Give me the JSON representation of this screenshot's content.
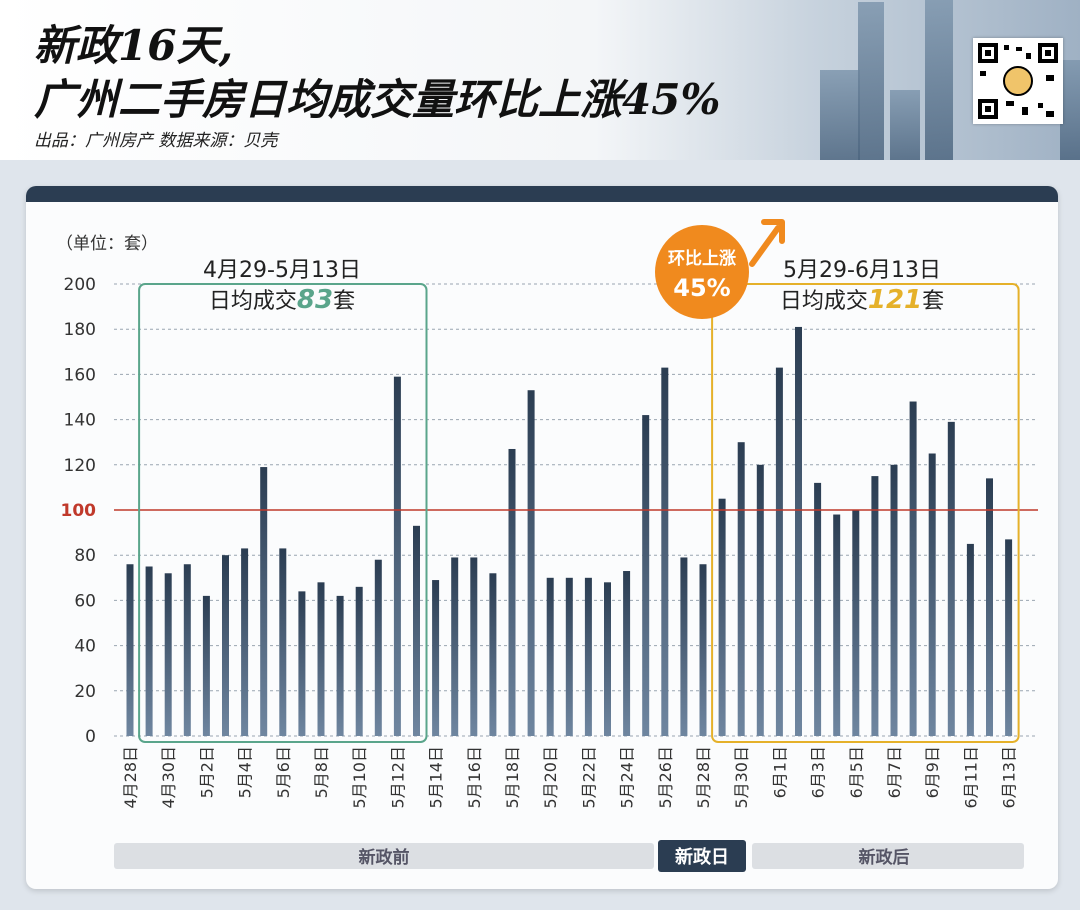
{
  "header": {
    "title_line1": "新政16天,",
    "title_line2": "广州二手房日均成交量环比上涨45%",
    "source": "出品：广州房产  数据来源：贝壳"
  },
  "colors": {
    "bar_top": "#2b3d52",
    "bar_bottom": "#6f86a0",
    "reference_line": "#c0392b",
    "box_before": "#5aa58b",
    "box_after": "#e5b12a",
    "badge": "#f08a1e",
    "period_bar": "#dcdfe3",
    "policy_day": "#2b3d52"
  },
  "chart_data": {
    "type": "bar",
    "ylabel": "（单位：套）",
    "ylim": [
      0,
      200
    ],
    "yticks": [
      0,
      20,
      40,
      60,
      80,
      100,
      120,
      140,
      160,
      180,
      200
    ],
    "reference_line": 100,
    "categories": [
      "4月28日",
      "4月29日",
      "4月30日",
      "5月1日",
      "5月2日",
      "5月3日",
      "5月4日",
      "5月5日",
      "5月6日",
      "5月7日",
      "5月8日",
      "5月9日",
      "5月10日",
      "5月11日",
      "5月12日",
      "5月13日",
      "5月14日",
      "5月15日",
      "5月16日",
      "5月17日",
      "5月18日",
      "5月19日",
      "5月20日",
      "5月21日",
      "5月22日",
      "5月23日",
      "5月24日",
      "5月25日",
      "5月26日",
      "5月27日",
      "5月28日",
      "5月29日",
      "5月30日",
      "5月31日",
      "6月1日",
      "6月2日",
      "6月3日",
      "6月4日",
      "6月5日",
      "6月6日",
      "6月7日",
      "6月8日",
      "6月9日",
      "6月10日",
      "6月11日",
      "6月12日",
      "6月13日"
    ],
    "tick_labels": [
      "4月28日",
      "4月30日",
      "5月2日",
      "5月4日",
      "5月6日",
      "5月8日",
      "5月10日",
      "5月12日",
      "5月14日",
      "5月16日",
      "5月18日",
      "5月20日",
      "5月22日",
      "5月24日",
      "5月26日",
      "5月28日",
      "5月30日",
      "6月1日",
      "6月3日",
      "6月5日",
      "6月7日",
      "6月9日",
      "6月11日",
      "6月13日"
    ],
    "values": [
      76,
      75,
      72,
      76,
      62,
      80,
      83,
      119,
      83,
      64,
      68,
      62,
      66,
      78,
      159,
      93,
      69,
      79,
      79,
      72,
      127,
      153,
      70,
      70,
      70,
      68,
      73,
      142,
      163,
      79,
      76,
      105,
      130,
      120,
      163,
      181,
      112,
      98,
      100,
      115,
      120,
      148,
      125,
      139,
      85,
      114,
      87
    ],
    "annotations": {
      "before": {
        "period": "4月29-5月13日",
        "text_prefix": "日均成交",
        "value": "83",
        "text_suffix": "套"
      },
      "after": {
        "period": "5月29-6月13日",
        "text_prefix": "日均成交",
        "value": "121",
        "text_suffix": "套"
      },
      "badge": {
        "line1": "环比上涨",
        "line2": "45%"
      }
    },
    "periods": {
      "before": "新政前",
      "policy_day": "新政日",
      "after": "新政后"
    }
  }
}
